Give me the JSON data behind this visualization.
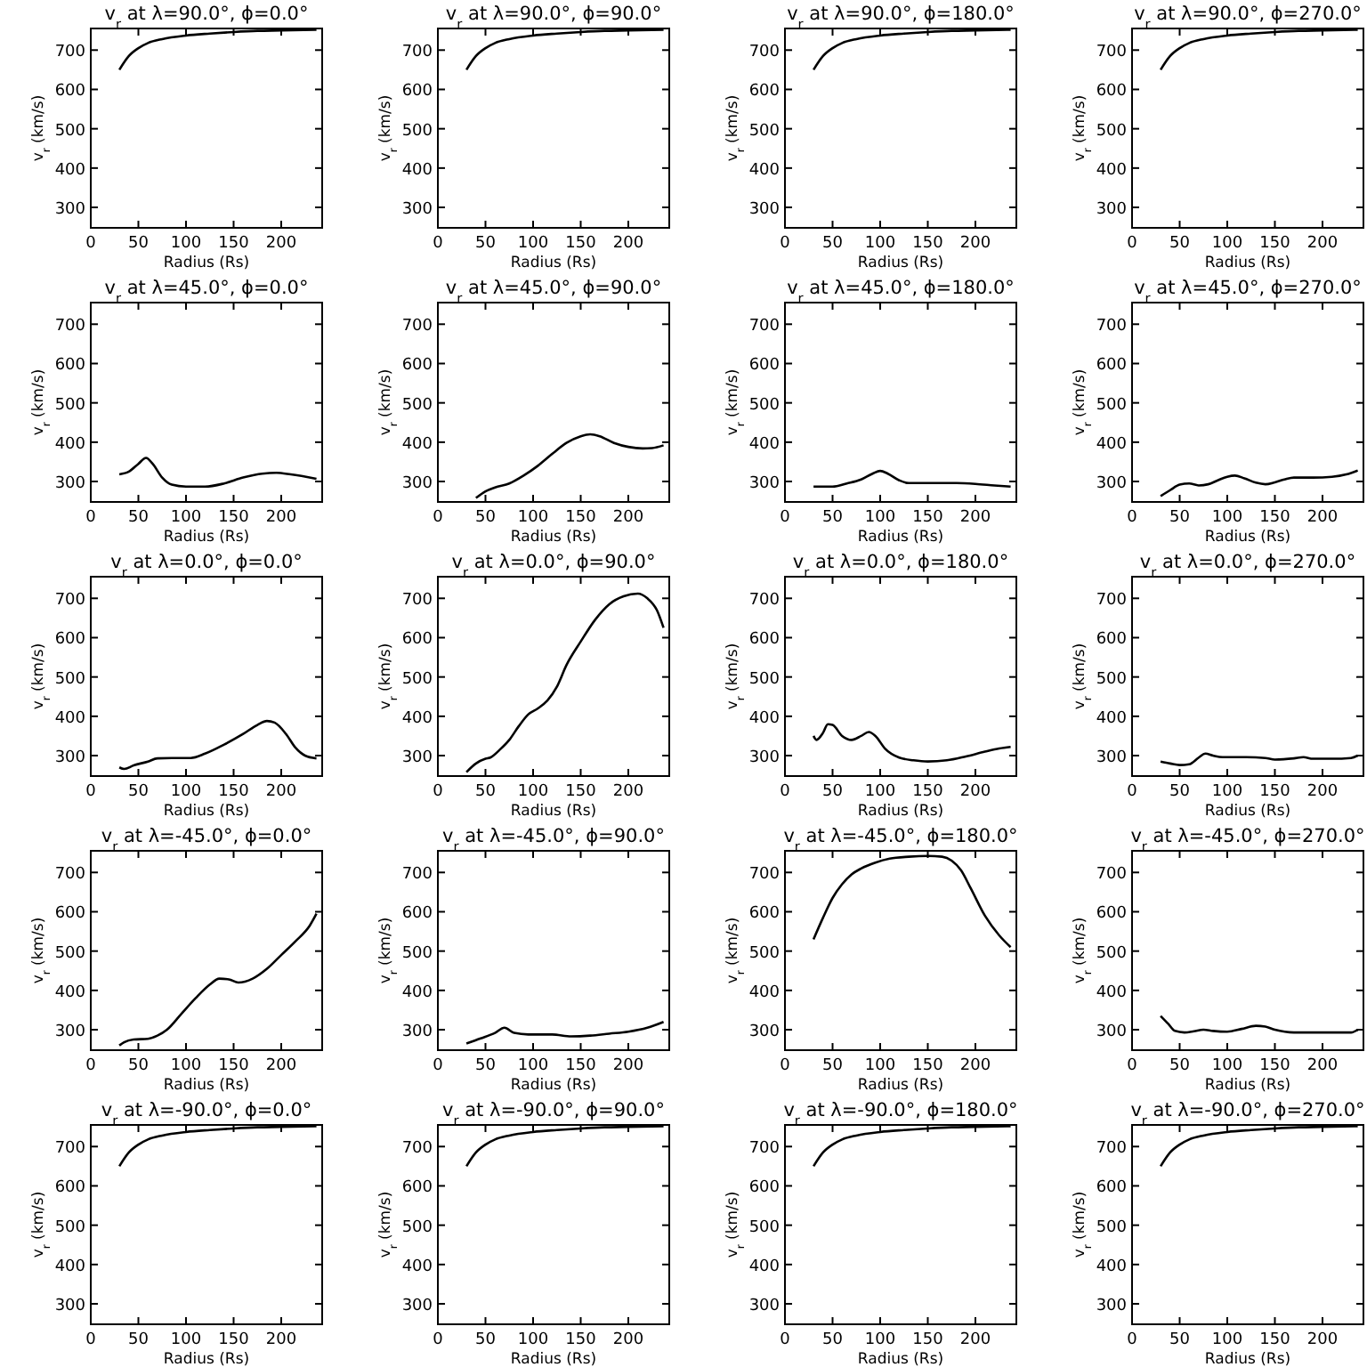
{
  "chart_data": [
    {
      "type": "line",
      "title": "v$_{r}$ at λ=90.0°, ϕ=0.0°",
      "xlabel": "Radius (Rs)",
      "ylabel": "v$_{r}$ (km/s)",
      "color": "#000000",
      "xlim": [
        0,
        243
      ],
      "ylim": [
        248,
        755
      ],
      "xticks": [
        0,
        50,
        100,
        150,
        200
      ],
      "yticks": [
        300,
        400,
        500,
        600,
        700
      ],
      "x": [
        30,
        40,
        50,
        60,
        75,
        100,
        125,
        150,
        175,
        200,
        237
      ],
      "values": [
        650,
        685,
        705,
        718,
        728,
        737,
        742,
        746,
        749,
        750,
        752
      ]
    },
    {
      "type": "line",
      "title": "v$_{r}$ at λ=90.0°, ϕ=90.0°",
      "xlabel": "Radius (Rs)",
      "ylabel": "v$_{r}$ (km/s)",
      "color": "#000000",
      "xlim": [
        0,
        243
      ],
      "ylim": [
        248,
        755
      ],
      "xticks": [
        0,
        50,
        100,
        150,
        200
      ],
      "yticks": [
        300,
        400,
        500,
        600,
        700
      ],
      "x": [
        30,
        40,
        50,
        60,
        75,
        100,
        125,
        150,
        175,
        200,
        237
      ],
      "values": [
        650,
        685,
        705,
        718,
        728,
        737,
        742,
        746,
        749,
        750,
        752
      ]
    },
    {
      "type": "line",
      "title": "v$_{r}$ at λ=90.0°, ϕ=180.0°",
      "xlabel": "Radius (Rs)",
      "ylabel": "v$_{r}$ (km/s)",
      "color": "#000000",
      "xlim": [
        0,
        243
      ],
      "ylim": [
        248,
        755
      ],
      "xticks": [
        0,
        50,
        100,
        150,
        200
      ],
      "yticks": [
        300,
        400,
        500,
        600,
        700
      ],
      "x": [
        30,
        40,
        50,
        60,
        75,
        100,
        125,
        150,
        175,
        200,
        237
      ],
      "values": [
        650,
        685,
        705,
        718,
        728,
        737,
        742,
        746,
        749,
        750,
        752
      ]
    },
    {
      "type": "line",
      "title": "v$_{r}$ at λ=90.0°, ϕ=270.0°",
      "xlabel": "Radius (Rs)",
      "ylabel": "v$_{r}$ (km/s)",
      "color": "#000000",
      "xlim": [
        0,
        243
      ],
      "ylim": [
        248,
        755
      ],
      "xticks": [
        0,
        50,
        100,
        150,
        200
      ],
      "yticks": [
        300,
        400,
        500,
        600,
        700
      ],
      "x": [
        30,
        40,
        50,
        60,
        75,
        100,
        125,
        150,
        175,
        200,
        237
      ],
      "values": [
        650,
        685,
        705,
        718,
        728,
        737,
        742,
        746,
        749,
        750,
        752
      ]
    },
    {
      "type": "line",
      "title": "v$_{r}$ at λ=45.0°, ϕ=0.0°",
      "xlabel": "Radius (Rs)",
      "ylabel": "v$_{r}$ (km/s)",
      "color": "#000000",
      "xlim": [
        0,
        243
      ],
      "ylim": [
        248,
        755
      ],
      "xticks": [
        0,
        50,
        100,
        150,
        200
      ],
      "yticks": [
        300,
        400,
        500,
        600,
        700
      ],
      "x": [
        30,
        40,
        50,
        58,
        65,
        75,
        85,
        100,
        120,
        140,
        160,
        180,
        195,
        210,
        237
      ],
      "values": [
        318,
        325,
        345,
        360,
        345,
        310,
        292,
        287,
        287,
        295,
        310,
        320,
        322,
        318,
        307
      ]
    },
    {
      "type": "line",
      "title": "v$_{r}$ at λ=45.0°, ϕ=90.0°",
      "xlabel": "Radius (Rs)",
      "ylabel": "v$_{r}$ (km/s)",
      "color": "#000000",
      "xlim": [
        0,
        243
      ],
      "ylim": [
        248,
        755
      ],
      "xticks": [
        0,
        50,
        100,
        150,
        200
      ],
      "yticks": [
        300,
        400,
        500,
        600,
        700
      ],
      "x": [
        40,
        50,
        60,
        75,
        90,
        105,
        120,
        135,
        150,
        160,
        170,
        185,
        200,
        215,
        225,
        237
      ],
      "values": [
        258,
        275,
        285,
        295,
        315,
        340,
        370,
        398,
        415,
        420,
        415,
        398,
        388,
        384,
        385,
        392
      ]
    },
    {
      "type": "line",
      "title": "v$_{r}$ at λ=45.0°, ϕ=180.0°",
      "xlabel": "Radius (Rs)",
      "ylabel": "v$_{r}$ (km/s)",
      "color": "#000000",
      "xlim": [
        0,
        243
      ],
      "ylim": [
        248,
        755
      ],
      "xticks": [
        0,
        50,
        100,
        150,
        200
      ],
      "yticks": [
        300,
        400,
        500,
        600,
        700
      ],
      "x": [
        30,
        50,
        65,
        80,
        92,
        100,
        108,
        120,
        130,
        150,
        180,
        200,
        220,
        237
      ],
      "values": [
        287,
        287,
        295,
        305,
        320,
        327,
        320,
        303,
        296,
        296,
        296,
        294,
        290,
        287
      ]
    },
    {
      "type": "line",
      "title": "v$_{r}$ at λ=45.0°, ϕ=270.0°",
      "xlabel": "Radius (Rs)",
      "ylabel": "v$_{r}$ (km/s)",
      "color": "#000000",
      "xlim": [
        0,
        243
      ],
      "ylim": [
        248,
        755
      ],
      "xticks": [
        0,
        50,
        100,
        150,
        200
      ],
      "yticks": [
        300,
        400,
        500,
        600,
        700
      ],
      "x": [
        30,
        40,
        50,
        60,
        70,
        80,
        90,
        100,
        108,
        118,
        130,
        140,
        150,
        160,
        170,
        190,
        210,
        225,
        237
      ],
      "values": [
        263,
        278,
        292,
        295,
        290,
        293,
        303,
        312,
        315,
        308,
        297,
        293,
        298,
        305,
        310,
        310,
        312,
        318,
        328
      ]
    },
    {
      "type": "line",
      "title": "v$_{r}$ at λ=0.0°, ϕ=0.0°",
      "xlabel": "Radius (Rs)",
      "ylabel": "v$_{r}$ (km/s)",
      "color": "#000000",
      "xlim": [
        0,
        243
      ],
      "ylim": [
        248,
        755
      ],
      "xticks": [
        0,
        50,
        100,
        150,
        200
      ],
      "yticks": [
        300,
        400,
        500,
        600,
        700
      ],
      "x": [
        30,
        35,
        45,
        60,
        70,
        85,
        105,
        120,
        140,
        160,
        175,
        185,
        193,
        205,
        215,
        225,
        237
      ],
      "values": [
        270,
        266,
        275,
        285,
        293,
        294,
        294,
        305,
        328,
        355,
        378,
        388,
        384,
        355,
        320,
        300,
        293
      ]
    },
    {
      "type": "line",
      "title": "v$_{r}$ at λ=0.0°, ϕ=90.0°",
      "xlabel": "Radius (Rs)",
      "ylabel": "v$_{r}$ (km/s)",
      "color": "#000000",
      "xlim": [
        0,
        243
      ],
      "ylim": [
        248,
        755
      ],
      "xticks": [
        0,
        50,
        100,
        150,
        200
      ],
      "yticks": [
        300,
        400,
        500,
        600,
        700
      ],
      "x": [
        30,
        40,
        50,
        55,
        65,
        75,
        85,
        95,
        105,
        115,
        125,
        135,
        150,
        165,
        180,
        195,
        210,
        220,
        230,
        237
      ],
      "values": [
        258,
        280,
        292,
        295,
        315,
        340,
        375,
        405,
        420,
        440,
        475,
        530,
        590,
        645,
        685,
        705,
        712,
        700,
        670,
        625
      ]
    },
    {
      "type": "line",
      "title": "v$_{r}$ at λ=0.0°, ϕ=180.0°",
      "xlabel": "Radius (Rs)",
      "ylabel": "v$_{r}$ (km/s)",
      "color": "#000000",
      "xlim": [
        0,
        243
      ],
      "ylim": [
        248,
        755
      ],
      "xticks": [
        0,
        50,
        100,
        150,
        200
      ],
      "yticks": [
        300,
        400,
        500,
        600,
        700
      ],
      "x": [
        30,
        33,
        40,
        45,
        50,
        60,
        70,
        80,
        88,
        95,
        105,
        120,
        135,
        150,
        170,
        190,
        210,
        225,
        237
      ],
      "values": [
        350,
        340,
        358,
        380,
        378,
        350,
        340,
        350,
        360,
        350,
        318,
        295,
        288,
        285,
        288,
        298,
        310,
        318,
        322
      ]
    },
    {
      "type": "line",
      "title": "v$_{r}$ at λ=0.0°, ϕ=270.0°",
      "xlabel": "Radius (Rs)",
      "ylabel": "v$_{r}$ (km/s)",
      "color": "#000000",
      "xlim": [
        0,
        243
      ],
      "ylim": [
        248,
        755
      ],
      "xticks": [
        0,
        50,
        100,
        150,
        200
      ],
      "yticks": [
        300,
        400,
        500,
        600,
        700
      ],
      "x": [
        30,
        40,
        50,
        60,
        70,
        77,
        85,
        95,
        120,
        140,
        150,
        170,
        180,
        190,
        210,
        230,
        237
      ],
      "values": [
        285,
        280,
        276,
        278,
        295,
        305,
        300,
        296,
        296,
        294,
        290,
        293,
        296,
        292,
        292,
        294,
        300
      ]
    },
    {
      "type": "line",
      "title": "v$_{r}$ at λ=-45.0°, ϕ=0.0°",
      "xlabel": "Radius (Rs)",
      "ylabel": "v$_{r}$ (km/s)",
      "color": "#000000",
      "xlim": [
        0,
        243
      ],
      "ylim": [
        248,
        755
      ],
      "xticks": [
        0,
        50,
        100,
        150,
        200
      ],
      "yticks": [
        300,
        400,
        500,
        600,
        700
      ],
      "x": [
        30,
        35,
        45,
        60,
        70,
        80,
        95,
        110,
        125,
        135,
        145,
        155,
        170,
        185,
        200,
        215,
        230,
        237
      ],
      "values": [
        260,
        268,
        275,
        277,
        285,
        300,
        340,
        380,
        415,
        430,
        428,
        420,
        430,
        455,
        490,
        525,
        565,
        595
      ]
    },
    {
      "type": "line",
      "title": "v$_{r}$ at λ=-45.0°, ϕ=90.0°",
      "xlabel": "Radius (Rs)",
      "ylabel": "v$_{r}$ (km/s)",
      "color": "#000000",
      "xlim": [
        0,
        243
      ],
      "ylim": [
        248,
        755
      ],
      "xticks": [
        0,
        50,
        100,
        150,
        200
      ],
      "yticks": [
        300,
        400,
        500,
        600,
        700
      ],
      "x": [
        30,
        45,
        60,
        70,
        80,
        95,
        120,
        140,
        160,
        180,
        200,
        220,
        237
      ],
      "values": [
        265,
        278,
        292,
        305,
        292,
        288,
        288,
        283,
        285,
        290,
        295,
        305,
        320
      ]
    },
    {
      "type": "line",
      "title": "v$_{r}$ at λ=-45.0°, ϕ=180.0°",
      "xlabel": "Radius (Rs)",
      "ylabel": "v$_{r}$ (km/s)",
      "color": "#000000",
      "xlim": [
        0,
        243
      ],
      "ylim": [
        248,
        755
      ],
      "xticks": [
        0,
        50,
        100,
        150,
        200
      ],
      "yticks": [
        300,
        400,
        500,
        600,
        700
      ],
      "x": [
        30,
        40,
        50,
        60,
        70,
        80,
        95,
        110,
        130,
        150,
        165,
        175,
        185,
        195,
        210,
        225,
        237
      ],
      "values": [
        530,
        585,
        635,
        670,
        695,
        710,
        725,
        735,
        740,
        742,
        740,
        730,
        705,
        660,
        590,
        540,
        510
      ]
    },
    {
      "type": "line",
      "title": "v$_{r}$ at λ=-45.0°, ϕ=270.0°",
      "xlabel": "Radius (Rs)",
      "ylabel": "v$_{r}$ (km/s)",
      "color": "#000000",
      "xlim": [
        0,
        243
      ],
      "ylim": [
        248,
        755
      ],
      "xticks": [
        0,
        50,
        100,
        150,
        200
      ],
      "yticks": [
        300,
        400,
        500,
        600,
        700
      ],
      "x": [
        30,
        38,
        45,
        55,
        65,
        75,
        85,
        100,
        115,
        130,
        140,
        150,
        170,
        200,
        230,
        237
      ],
      "values": [
        335,
        315,
        297,
        293,
        296,
        300,
        297,
        295,
        302,
        310,
        308,
        300,
        293,
        293,
        293,
        300
      ]
    },
    {
      "type": "line",
      "title": "v$_{r}$ at λ=-90.0°, ϕ=0.0°",
      "xlabel": "Radius (Rs)",
      "ylabel": "v$_{r}$ (km/s)",
      "color": "#000000",
      "xlim": [
        0,
        243
      ],
      "ylim": [
        248,
        755
      ],
      "xticks": [
        0,
        50,
        100,
        150,
        200
      ],
      "yticks": [
        300,
        400,
        500,
        600,
        700
      ],
      "x": [
        30,
        40,
        50,
        60,
        75,
        100,
        125,
        150,
        175,
        200,
        237
      ],
      "values": [
        650,
        685,
        705,
        718,
        728,
        737,
        742,
        746,
        749,
        750,
        752
      ]
    },
    {
      "type": "line",
      "title": "v$_{r}$ at λ=-90.0°, ϕ=90.0°",
      "xlabel": "Radius (Rs)",
      "ylabel": "v$_{r}$ (km/s)",
      "color": "#000000",
      "xlim": [
        0,
        243
      ],
      "ylim": [
        248,
        755
      ],
      "xticks": [
        0,
        50,
        100,
        150,
        200
      ],
      "yticks": [
        300,
        400,
        500,
        600,
        700
      ],
      "x": [
        30,
        40,
        50,
        60,
        75,
        100,
        125,
        150,
        175,
        200,
        237
      ],
      "values": [
        650,
        685,
        705,
        718,
        728,
        737,
        742,
        746,
        749,
        750,
        752
      ]
    },
    {
      "type": "line",
      "title": "v$_{r}$ at λ=-90.0°, ϕ=180.0°",
      "xlabel": "Radius (Rs)",
      "ylabel": "v$_{r}$ (km/s)",
      "color": "#000000",
      "xlim": [
        0,
        243
      ],
      "ylim": [
        248,
        755
      ],
      "xticks": [
        0,
        50,
        100,
        150,
        200
      ],
      "yticks": [
        300,
        400,
        500,
        600,
        700
      ],
      "x": [
        30,
        40,
        50,
        60,
        75,
        100,
        125,
        150,
        175,
        200,
        237
      ],
      "values": [
        650,
        685,
        705,
        718,
        728,
        737,
        742,
        746,
        749,
        750,
        752
      ]
    },
    {
      "type": "line",
      "title": "v$_{r}$ at λ=-90.0°, ϕ=270.0°",
      "xlabel": "Radius (Rs)",
      "ylabel": "v$_{r}$ (km/s)",
      "color": "#000000",
      "xlim": [
        0,
        243
      ],
      "ylim": [
        248,
        755
      ],
      "xticks": [
        0,
        50,
        100,
        150,
        200
      ],
      "yticks": [
        300,
        400,
        500,
        600,
        700
      ],
      "x": [
        30,
        40,
        50,
        60,
        75,
        100,
        125,
        150,
        175,
        200,
        237
      ],
      "values": [
        650,
        685,
        705,
        718,
        728,
        737,
        742,
        746,
        749,
        750,
        752
      ]
    }
  ]
}
